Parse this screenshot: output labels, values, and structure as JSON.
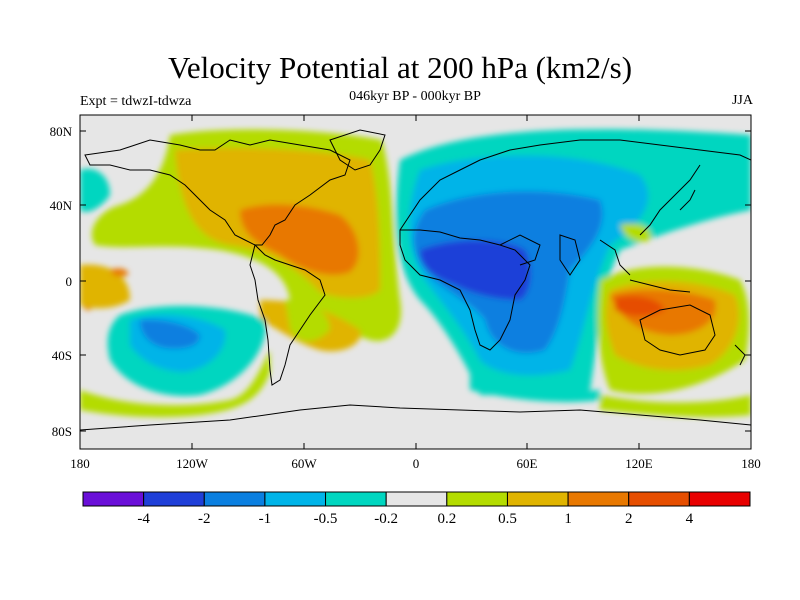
{
  "title": "Velocity Potential at 200 hPa (km2/s)",
  "subtitle": "046kyr BP - 000kyr BP",
  "experiment": "Expt = tdwzI-tdwza",
  "season": "JJA",
  "axes": {
    "lat_ticks": [
      "80N",
      "40N",
      "0",
      "40S",
      "80S"
    ],
    "lon_ticks": [
      "180",
      "120W",
      "60W",
      "0",
      "60E",
      "120E",
      "180"
    ]
  },
  "colorbar": {
    "colors": [
      "#6a0fd8",
      "#1f3fd8",
      "#0a7fe0",
      "#00b4e8",
      "#00d6c0",
      "#e6e6e6",
      "#b4dc00",
      "#e0b400",
      "#e87800",
      "#e64e00",
      "#e80000"
    ],
    "labels": [
      "-4",
      "-2",
      "-1",
      "-0.5",
      "-0.2",
      "0.2",
      "0.5",
      "1",
      "2",
      "4"
    ]
  },
  "map": {
    "background_color": "#e6e6e6",
    "coastline_color": "#000000"
  }
}
